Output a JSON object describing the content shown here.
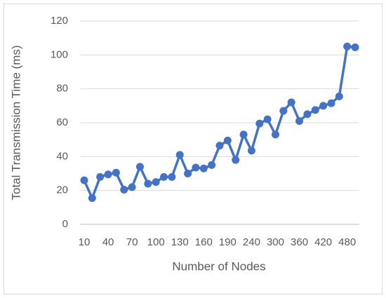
{
  "chart_data": {
    "type": "line",
    "x_label": "Number of Nodes",
    "y_label": "Total Transmission Time (ms)",
    "categories": [
      "10",
      null,
      null,
      "40",
      null,
      null,
      "70",
      null,
      null,
      "100",
      null,
      null,
      "130",
      null,
      null,
      "160",
      null,
      null,
      "190",
      null,
      null,
      "240",
      null,
      null,
      "300",
      null,
      null,
      "360",
      null,
      null,
      "420",
      null,
      null,
      "480",
      null
    ],
    "series": [
      {
        "name": "Total Transmission Time",
        "color": "#4472c4",
        "values": [
          26,
          15.5,
          28,
          29.5,
          30.5,
          20.5,
          22,
          34,
          24,
          25,
          28,
          28,
          41,
          30,
          33.5,
          33,
          35,
          46.5,
          49.5,
          38,
          53,
          43.5,
          59.5,
          62,
          53,
          67,
          72,
          61,
          65,
          67.5,
          70,
          71.5,
          75.5,
          105,
          104.5
        ]
      }
    ],
    "ylim": [
      0,
      120
    ],
    "yticks": [
      0,
      20,
      40,
      60,
      80,
      100,
      120
    ],
    "grid": true
  }
}
